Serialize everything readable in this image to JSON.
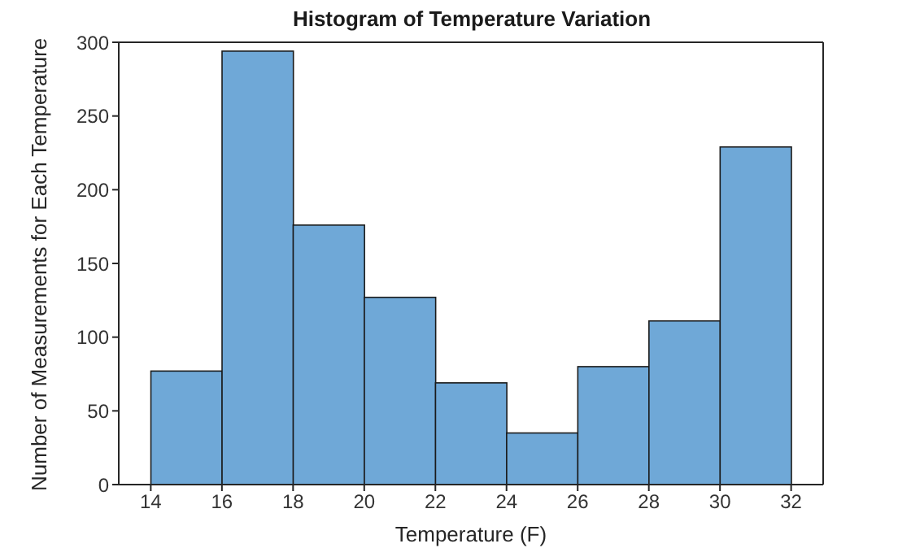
{
  "chart_data": {
    "type": "histogram",
    "title": "Histogram of Temperature Variation",
    "xlabel": "Temperature (F)",
    "ylabel": "Number of Measurements for Each Temperature",
    "bins": [
      14,
      16,
      18,
      20,
      22,
      24,
      26,
      28,
      30,
      32
    ],
    "values": [
      77,
      294,
      176,
      127,
      69,
      35,
      80,
      111,
      229
    ],
    "color": "#6fa8d7",
    "xlim": [
      13.1,
      32.9
    ],
    "xticks": [
      14,
      16,
      18,
      20,
      22,
      24,
      26,
      28,
      30,
      32
    ],
    "ylim": [
      0,
      300
    ],
    "yticks": [
      0,
      50,
      100,
      150,
      200,
      250,
      300
    ],
    "grid": false
  }
}
